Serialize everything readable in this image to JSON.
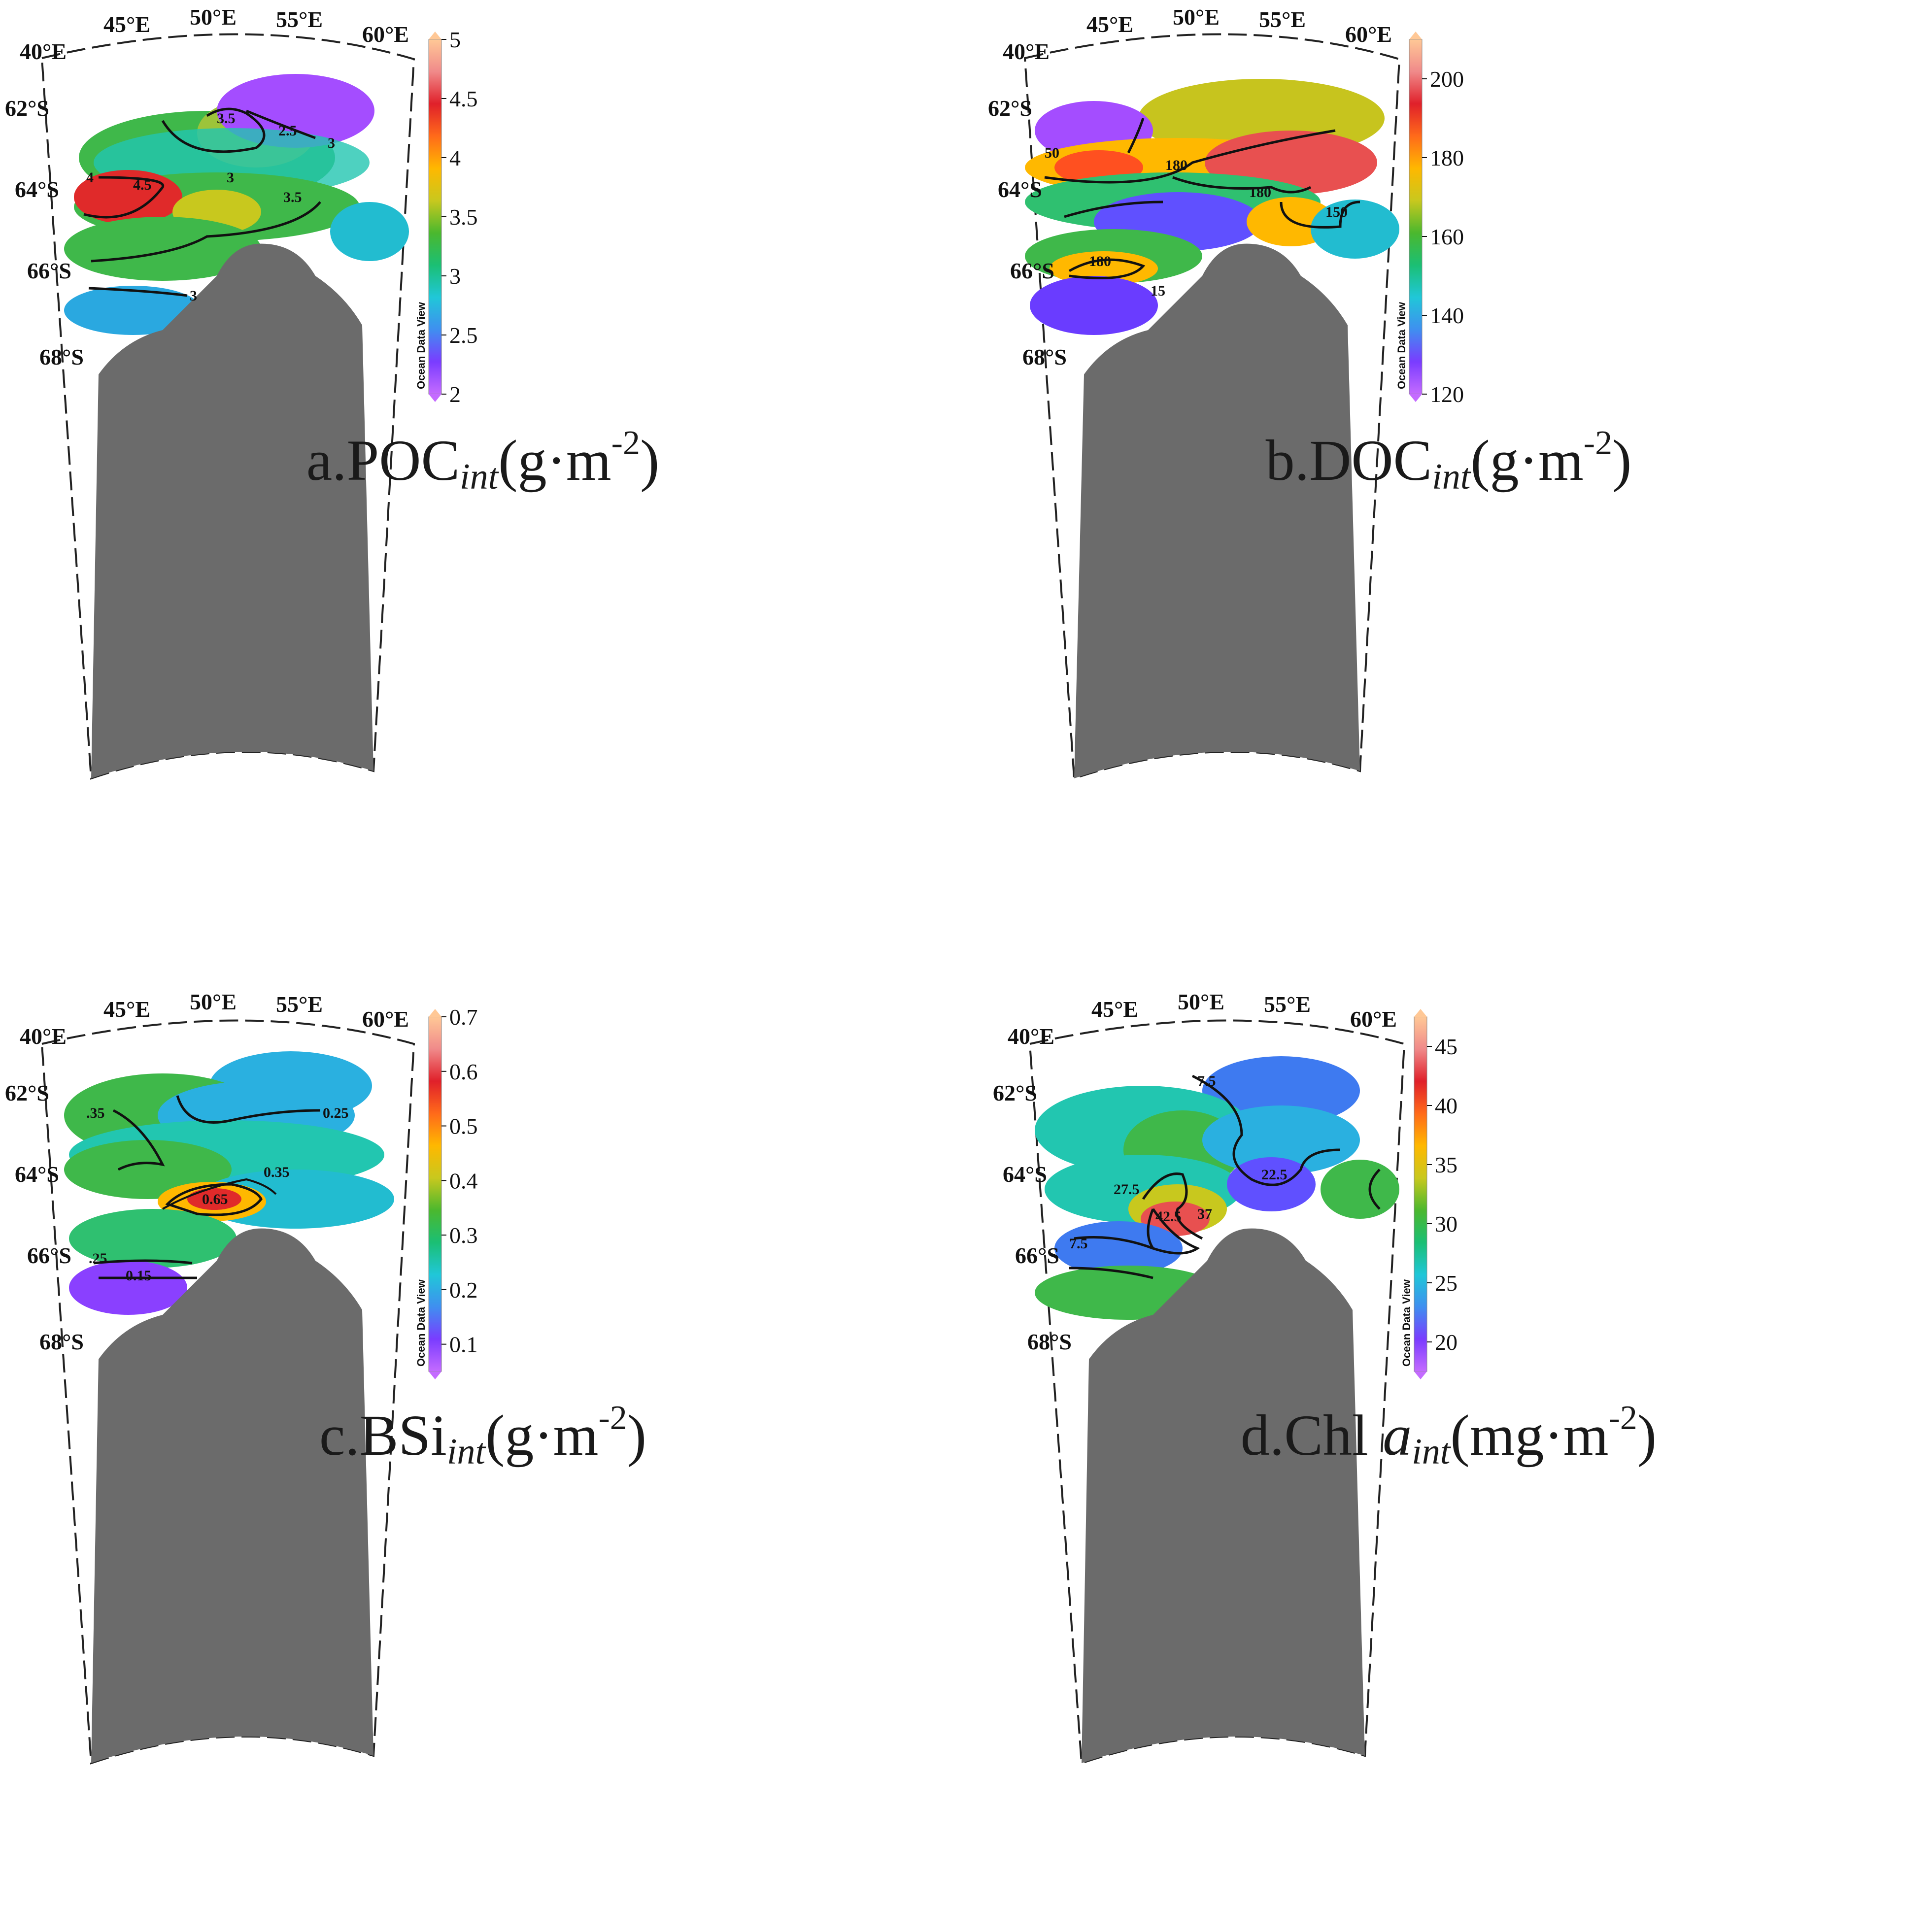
{
  "colorbar_brand": "Ocean Data View",
  "colors": {
    "land": "#6b6b6b",
    "contour": "#111111",
    "scale": [
      "#c46bff",
      "#7a3cff",
      "#3f8ff0",
      "#20c7d8",
      "#1bbf74",
      "#4bb82e",
      "#c8c81e",
      "#ffb800",
      "#ff6a1a",
      "#e0202a",
      "#f08a8a",
      "#ffc896"
    ]
  },
  "panels": [
    {
      "id": "a",
      "caption": {
        "prefix": "a.POC",
        "sub": "int",
        "unit": "(g·m",
        "sup": "-2",
        "close": ")"
      },
      "lon_labels": [
        "40°E",
        "45°E",
        "50°E",
        "55°E",
        "60°E"
      ],
      "lat_labels": [
        "62°S",
        "64°S",
        "66°S",
        "68°S"
      ],
      "colorbar": {
        "min": 2,
        "max": 5,
        "ticks": [
          "2",
          "2.5",
          "3",
          "3.5",
          "4",
          "4.5",
          "5"
        ]
      },
      "contour_labels": [
        "3.5",
        "2.5",
        "3",
        "4",
        "4.5",
        "3",
        "3.5",
        "3"
      ]
    },
    {
      "id": "b",
      "caption": {
        "prefix": "b.DOC",
        "sub": "int",
        "unit": "(g·m",
        "sup": "-2",
        "close": ")"
      },
      "lon_labels": [
        "40°E",
        "45°E",
        "50°E",
        "55°E",
        "60°E"
      ],
      "lat_labels": [
        "62°S",
        "64°S",
        "66°S",
        "68°S"
      ],
      "colorbar": {
        "min": 120,
        "max": 210,
        "ticks": [
          "120",
          "140",
          "160",
          "180",
          "200"
        ]
      },
      "contour_labels": [
        "50",
        "180",
        "180",
        "150",
        "180",
        "15"
      ]
    },
    {
      "id": "c",
      "caption": {
        "prefix": "c.BSi",
        "sub": "int",
        "unit": "(g·m",
        "sup": "-2",
        "close": ")"
      },
      "lon_labels": [
        "40°E",
        "45°E",
        "50°E",
        "55°E",
        "60°E"
      ],
      "lat_labels": [
        "62°S",
        "64°S",
        "66°S",
        "68°S"
      ],
      "colorbar": {
        "min": 0.05,
        "max": 0.7,
        "ticks": [
          "0.1",
          "0.2",
          "0.3",
          "0.4",
          "0.5",
          "0.6",
          "0.7"
        ]
      },
      "contour_labels": [
        ".35",
        "0.25",
        "0.35",
        "0.65",
        ".25",
        "0.15"
      ]
    },
    {
      "id": "d",
      "caption": {
        "prefix": "d.Chl ",
        "italic": "a",
        "sub": "int",
        "unit": "(mg·m",
        "sup": "-2",
        "close": ")"
      },
      "lon_labels": [
        "40°E",
        "45°E",
        "50°E",
        "55°E",
        "60°E"
      ],
      "lat_labels": [
        "62°S",
        "64°S",
        "66°S",
        "68°S"
      ],
      "colorbar": {
        "min": 17.5,
        "max": 47.5,
        "ticks": [
          "20",
          "25",
          "30",
          "35",
          "40",
          "45"
        ]
      },
      "contour_labels": [
        "7.5",
        "27.5",
        "22.5",
        "42.5",
        "37",
        "7.5"
      ]
    }
  ]
}
